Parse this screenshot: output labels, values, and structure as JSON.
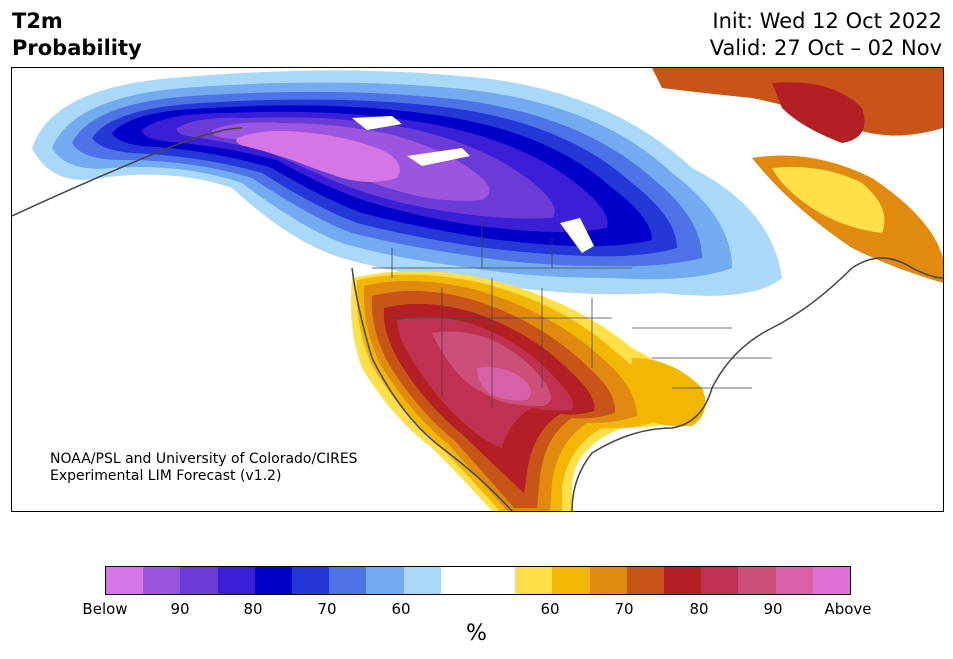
{
  "header": {
    "title_line1": "T2m",
    "title_line2": "Probability",
    "init": "Init: Wed 12 Oct 2022",
    "valid": "Valid: 27 Oct – 02 Nov"
  },
  "credit": {
    "line1": "NOAA/PSL and University of Colorado/CIRES",
    "line2": "Experimental LIM Forecast (v1.2)"
  },
  "colorbar": {
    "unit": "%",
    "colors": [
      "#d575e6",
      "#9b55de",
      "#6a3bd6",
      "#3a1fd6",
      "#0000c9",
      "#2438d8",
      "#4e73e6",
      "#73aaf0",
      "#aad8f8",
      "#ffffff",
      "#ffffff",
      "#ffe04a",
      "#f2b705",
      "#e08a10",
      "#c85518",
      "#b22024",
      "#c03050",
      "#cc4f7a",
      "#d860a8",
      "#e070d6"
    ],
    "ticks": [
      "Below",
      "90",
      "80",
      "70",
      "60",
      "60",
      "70",
      "80",
      "90",
      "Above"
    ]
  },
  "map": {
    "land_color": "#ffffff",
    "border_color": "#444444"
  }
}
